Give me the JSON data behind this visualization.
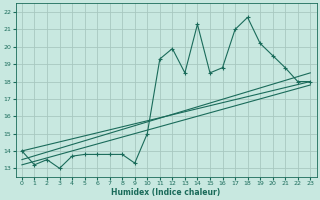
{
  "title": "",
  "xlabel": "Humidex (Indice chaleur)",
  "bg_color": "#c8e8e0",
  "grid_color": "#a8c8c0",
  "line_color": "#1a6b5a",
  "xlim": [
    -0.5,
    23.5
  ],
  "ylim": [
    12.5,
    22.5
  ],
  "xticks": [
    0,
    1,
    2,
    3,
    4,
    5,
    6,
    7,
    8,
    9,
    10,
    11,
    12,
    13,
    14,
    15,
    16,
    17,
    18,
    19,
    20,
    21,
    22,
    23
  ],
  "yticks": [
    13,
    14,
    15,
    16,
    17,
    18,
    19,
    20,
    21,
    22
  ],
  "main_x": [
    0,
    1,
    2,
    3,
    4,
    5,
    6,
    7,
    8,
    9,
    10,
    11,
    12,
    13,
    14,
    15,
    16,
    17,
    18,
    19,
    20,
    21,
    22,
    23
  ],
  "main_y": [
    14.0,
    13.2,
    13.5,
    13.0,
    13.7,
    13.8,
    13.8,
    13.8,
    13.8,
    13.3,
    15.0,
    19.3,
    19.9,
    18.5,
    21.3,
    18.5,
    18.8,
    21.0,
    21.7,
    20.2,
    19.5,
    18.8,
    18.0,
    18.0
  ],
  "line1_x": [
    0,
    23
  ],
  "line1_y": [
    13.5,
    18.5
  ],
  "line2_x": [
    0,
    23
  ],
  "line2_y": [
    13.2,
    17.8
  ],
  "line3_x": [
    0,
    23
  ],
  "line3_y": [
    14.0,
    18.0
  ]
}
